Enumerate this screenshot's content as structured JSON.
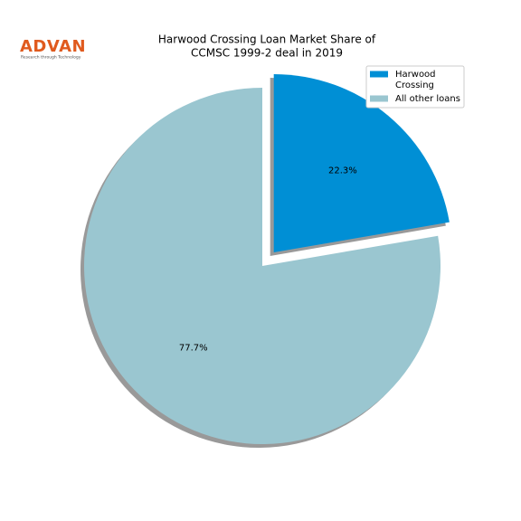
{
  "logo": {
    "name": "ADVAN",
    "tagline": "Research through Technology"
  },
  "chart_data": {
    "type": "pie",
    "title": "Harwood Crossing Loan Market Share of",
    "subtitle": "CCMSC 1999-2 deal in 2019",
    "categories": [
      "Harwood Crossing",
      "All other loans"
    ],
    "values": [
      22.3,
      77.7
    ],
    "value_labels": [
      "22.3%",
      "77.7%"
    ],
    "colors": [
      "#008fd5",
      "#9ac6d0"
    ],
    "startangle": 90,
    "counterclock": false,
    "explode": [
      0.1,
      0
    ],
    "shadow": true,
    "legend": "upper right"
  }
}
